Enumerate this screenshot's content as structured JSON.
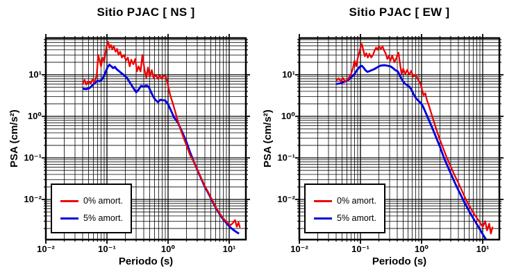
{
  "page": {
    "background": "#ffffff",
    "accent_red": "#ee0000",
    "accent_blue": "#0000dd"
  },
  "chart_data": [
    {
      "type": "line",
      "title": "Sitio PJAC [ NS ]",
      "xlabel": "Periodo (s)",
      "ylabel": "PSA (cm/s²)",
      "xscale": "log",
      "yscale": "log",
      "xlim": [
        0.01,
        19
      ],
      "ylim": [
        0.0011,
        75
      ],
      "x_ticks": [
        0.01,
        0.1,
        1,
        10
      ],
      "y_ticks": [
        10,
        1,
        0.1,
        0.01
      ],
      "x_tick_display": [
        "10⁻²",
        "10⁻¹",
        "10⁰",
        "10¹"
      ],
      "y_tick_display": [
        "10¹",
        "10⁰",
        "10⁻¹",
        "10⁻²"
      ],
      "grid": "major+minor, all black",
      "legend_position": "lower-left",
      "series": [
        {
          "name": "0% amort.",
          "color": "#ee0000",
          "x": [
            0.04,
            0.043,
            0.046,
            0.05,
            0.054,
            0.058,
            0.062,
            0.068,
            0.072,
            0.076,
            0.08,
            0.085,
            0.09,
            0.096,
            0.1,
            0.105,
            0.11,
            0.116,
            0.122,
            0.13,
            0.138,
            0.146,
            0.155,
            0.165,
            0.175,
            0.19,
            0.205,
            0.22,
            0.235,
            0.25,
            0.27,
            0.29,
            0.31,
            0.33,
            0.355,
            0.38,
            0.41,
            0.44,
            0.47,
            0.5,
            0.54,
            0.58,
            0.63,
            0.68,
            0.73,
            0.79,
            0.85,
            0.92,
            1.0,
            1.08,
            1.18,
            1.3,
            1.45,
            1.6,
            1.8,
            2.0,
            2.3,
            2.6,
            3.0,
            3.5,
            4.0,
            4.6,
            5.3,
            6.1,
            7.0,
            8.0,
            9.2,
            10.5,
            11.5,
            12.5,
            13.3,
            14.2,
            15.0
          ],
          "y": [
            6.0,
            7.5,
            5.8,
            7.0,
            6.2,
            7.6,
            6.6,
            9.5,
            30,
            22,
            16,
            26,
            21,
            38,
            52,
            62,
            44,
            52,
            42,
            48,
            36,
            42,
            30,
            36,
            26,
            30,
            22,
            26,
            16,
            23,
            18,
            24,
            12,
            16,
            12,
            30,
            14,
            8.5,
            15,
            9.0,
            13,
            8.5,
            10,
            8.0,
            9.5,
            8.0,
            9.5,
            9.0,
            5.5,
            3.3,
            2.2,
            1.35,
            0.75,
            0.48,
            0.3,
            0.2,
            0.115,
            0.085,
            0.052,
            0.032,
            0.021,
            0.0145,
            0.0095,
            0.0063,
            0.0046,
            0.0035,
            0.0028,
            0.0024,
            0.0027,
            0.0032,
            0.0022,
            0.0028,
            0.0021
          ]
        },
        {
          "name": "5% amort.",
          "color": "#0000dd",
          "x": [
            0.04,
            0.046,
            0.052,
            0.058,
            0.064,
            0.07,
            0.076,
            0.082,
            0.09,
            0.096,
            0.103,
            0.11,
            0.118,
            0.126,
            0.135,
            0.145,
            0.158,
            0.172,
            0.19,
            0.21,
            0.23,
            0.25,
            0.27,
            0.3,
            0.33,
            0.36,
            0.4,
            0.44,
            0.48,
            0.52,
            0.57,
            0.62,
            0.68,
            0.75,
            0.82,
            0.9,
            1.0,
            1.1,
            1.25,
            1.45,
            1.7,
            2.0,
            2.3,
            2.6,
            3.0,
            3.5,
            4.0,
            4.6,
            5.3,
            6.1,
            7.0,
            8.0,
            9.2,
            10.5,
            12.0,
            13.5,
            14.5
          ],
          "y": [
            4.6,
            4.5,
            4.8,
            5.6,
            6.4,
            7.2,
            7.0,
            7.6,
            9.5,
            12,
            15.5,
            17.5,
            16,
            14.5,
            15.5,
            13.5,
            12.2,
            11.0,
            9.8,
            8.6,
            7.0,
            5.8,
            4.8,
            3.8,
            4.4,
            5.4,
            5.2,
            5.5,
            5.2,
            4.0,
            3.0,
            2.5,
            2.2,
            2.5,
            2.45,
            2.4,
            1.95,
            1.45,
            0.95,
            0.7,
            0.42,
            0.24,
            0.135,
            0.085,
            0.052,
            0.031,
            0.02,
            0.0138,
            0.0092,
            0.0061,
            0.0044,
            0.0033,
            0.0026,
            0.0021,
            0.0018,
            0.0016,
            0.0015
          ]
        }
      ]
    },
    {
      "type": "line",
      "title": "Sitio PJAC [ EW ]",
      "xlabel": "Periodo (s)",
      "ylabel": "PSA (cm/s²)",
      "xscale": "log",
      "yscale": "log",
      "xlim": [
        0.01,
        19
      ],
      "ylim": [
        0.0011,
        75
      ],
      "x_ticks": [
        0.01,
        0.1,
        1,
        10
      ],
      "y_ticks": [
        10,
        1,
        0.1,
        0.01
      ],
      "x_tick_display": [
        "10⁻²",
        "10⁻¹",
        "10⁰",
        "10¹"
      ],
      "y_tick_display": [
        "10¹",
        "10⁰",
        "10⁻¹",
        "10⁻²"
      ],
      "grid": "major+minor, all black",
      "legend_position": "lower-left",
      "series": [
        {
          "name": "0% amort.",
          "color": "#ee0000",
          "x": [
            0.04,
            0.044,
            0.048,
            0.052,
            0.056,
            0.06,
            0.065,
            0.07,
            0.075,
            0.08,
            0.085,
            0.09,
            0.096,
            0.1,
            0.105,
            0.112,
            0.118,
            0.125,
            0.132,
            0.14,
            0.15,
            0.16,
            0.17,
            0.18,
            0.19,
            0.2,
            0.215,
            0.23,
            0.245,
            0.26,
            0.275,
            0.29,
            0.31,
            0.33,
            0.36,
            0.39,
            0.42,
            0.45,
            0.47,
            0.5,
            0.54,
            0.58,
            0.63,
            0.68,
            0.73,
            0.8,
            0.88,
            0.95,
            1.02,
            1.08,
            1.15,
            1.22,
            1.32,
            1.45,
            1.6,
            1.8,
            2.0,
            2.3,
            2.6,
            3.0,
            3.5,
            4.0,
            4.6,
            5.3,
            6.1,
            7.0,
            8.0,
            9.0,
            10.0,
            11.0,
            11.8,
            12.8,
            13.6,
            14.5
          ],
          "y": [
            7.2,
            8.2,
            7.0,
            8.3,
            6.9,
            7.5,
            8.5,
            10.5,
            14,
            22,
            16,
            25,
            35,
            45,
            55,
            38,
            28,
            33,
            26,
            32,
            26,
            30,
            38,
            45,
            40,
            48,
            42,
            48,
            38,
            32,
            24,
            28,
            22,
            29,
            20,
            26,
            34,
            16,
            10.5,
            14,
            10.5,
            13,
            10,
            12.5,
            9.0,
            10,
            7.5,
            6.5,
            4.3,
            3.2,
            3.6,
            2.5,
            1.8,
            1.15,
            0.72,
            0.42,
            0.27,
            0.16,
            0.1,
            0.062,
            0.037,
            0.025,
            0.016,
            0.01,
            0.0068,
            0.0048,
            0.0036,
            0.0028,
            0.0022,
            0.003,
            0.0018,
            0.0026,
            0.0015,
            0.0022
          ]
        },
        {
          "name": "5% amort.",
          "color": "#0000dd",
          "x": [
            0.04,
            0.046,
            0.052,
            0.058,
            0.065,
            0.072,
            0.08,
            0.088,
            0.097,
            0.105,
            0.112,
            0.12,
            0.13,
            0.14,
            0.15,
            0.165,
            0.18,
            0.2,
            0.22,
            0.25,
            0.28,
            0.31,
            0.34,
            0.37,
            0.41,
            0.45,
            0.49,
            0.53,
            0.58,
            0.63,
            0.68,
            0.74,
            0.8,
            0.88,
            0.97,
            1.05,
            1.15,
            1.3,
            1.5,
            1.75,
            2.0,
            2.3,
            2.7,
            3.1,
            3.6,
            4.2,
            4.9,
            5.7,
            6.6,
            7.7,
            9.0,
            10.5,
            12.0,
            13.5,
            14.5
          ],
          "y": [
            6.0,
            6.2,
            6.6,
            7.0,
            7.8,
            8.9,
            10.5,
            13,
            15.5,
            16.5,
            15,
            13,
            11.8,
            12.2,
            12.8,
            13.5,
            14.5,
            16,
            16.8,
            17,
            16.5,
            16,
            14.5,
            13,
            12,
            9.0,
            7.2,
            6.2,
            5.6,
            5.2,
            4.4,
            3.4,
            2.8,
            2.4,
            2.1,
            1.75,
            1.3,
            0.85,
            0.52,
            0.3,
            0.185,
            0.105,
            0.06,
            0.038,
            0.023,
            0.0145,
            0.0092,
            0.006,
            0.0041,
            0.0028,
            0.0019,
            0.0013,
            0.00095,
            0.00075,
            0.00068
          ]
        }
      ]
    }
  ]
}
